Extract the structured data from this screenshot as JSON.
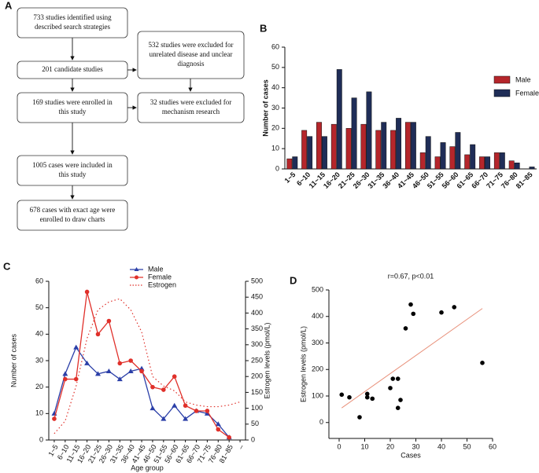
{
  "diagram": {
    "label": "A",
    "nodes": [
      {
        "lines": [
          "733 studies identified using",
          "described search strategies"
        ]
      },
      {
        "lines": [
          "201 candidate studies"
        ]
      },
      {
        "lines": [
          "532 studies were excluded for",
          "unrelated disease and unclear",
          "diagnosis"
        ]
      },
      {
        "lines": [
          "169 studies were enrolled in",
          "this study"
        ]
      },
      {
        "lines": [
          "32 studies were excluded for",
          "mechanism research"
        ]
      },
      {
        "lines": [
          "1005 cases were included in",
          "this study"
        ]
      },
      {
        "lines": [
          "678 cases with exact age were",
          "enrolled to draw charts"
        ]
      }
    ]
  },
  "chart_data": [
    {
      "type": "bar",
      "label": "B",
      "ylabel": "Number of cases",
      "categories": [
        "1~5",
        "6~10",
        "11~15",
        "16~20",
        "21~25",
        "26~30",
        "31~35",
        "36~40",
        "41~45",
        "46~50",
        "51~55",
        "56~60",
        "61~65",
        "66~70",
        "71~75",
        "76~80",
        "81~85"
      ],
      "series": [
        {
          "name": "Male",
          "color": "#b5262b",
          "values": [
            5,
            19,
            23,
            22,
            20,
            22,
            19,
            19,
            23,
            8,
            6,
            11,
            7,
            6,
            8,
            4,
            0
          ]
        },
        {
          "name": "Female",
          "color": "#1f2d57",
          "values": [
            6,
            16,
            16,
            49,
            35,
            38,
            23,
            25,
            23,
            16,
            13,
            18,
            12,
            6,
            8,
            3,
            1
          ]
        }
      ],
      "ylim": [
        0,
        60
      ],
      "yticks": [
        0,
        10,
        20,
        30,
        40,
        50,
        60
      ],
      "legend": "right"
    },
    {
      "type": "line",
      "label": "C",
      "xlabel": "Age group",
      "ylabel": "Number of cases",
      "y2label": "Estrogen levels (pmol/L)",
      "categories": [
        "1~5",
        "6~10",
        "11~15",
        "16~20",
        "21~25",
        "26~30",
        "31~35",
        "36~40",
        "41~45",
        "46~50",
        "51~55",
        "56~60",
        "61~65",
        "66~70",
        "71~75",
        "76~80",
        "81~85",
        "–"
      ],
      "series": [
        {
          "name": "Male",
          "color": "#2b3fa8",
          "marker": "triangle",
          "values": [
            10,
            25,
            35,
            29,
            25,
            26,
            23,
            26,
            27,
            12,
            8,
            13,
            8,
            11,
            10,
            6,
            1,
            null
          ]
        },
        {
          "name": "Female",
          "color": "#e0302a",
          "marker": "circle",
          "values": [
            8,
            23,
            23,
            56,
            40,
            45,
            29,
            30,
            26,
            20,
            19,
            24,
            13,
            11,
            11,
            4,
            1,
            null
          ]
        },
        {
          "name": "Estrogen",
          "color": "#e0302a",
          "dash": true,
          "axis": "y2",
          "values": [
            20,
            60,
            170,
            320,
            410,
            435,
            445,
            410,
            340,
            200,
            170,
            155,
            120,
            110,
            105,
            105,
            110,
            120
          ]
        }
      ],
      "ylim": [
        0,
        60
      ],
      "yticks": [
        0,
        10,
        20,
        30,
        40,
        50,
        60
      ],
      "y2lim": [
        0,
        500
      ],
      "y2ticks": [
        0,
        50,
        100,
        150,
        200,
        250,
        300,
        350,
        400,
        450,
        500
      ],
      "legend": "top"
    },
    {
      "type": "scatter",
      "label": "D",
      "title": "r=0.67, p<0.01",
      "xlabel": "Cases",
      "ylabel": "Estrogen levels (pmol/L)",
      "x": [
        1,
        4,
        8,
        11,
        11,
        13,
        20,
        21,
        23,
        23,
        24,
        26,
        28,
        29,
        40,
        45,
        56
      ],
      "y": [
        105,
        95,
        20,
        108,
        95,
        90,
        130,
        165,
        165,
        55,
        85,
        355,
        445,
        410,
        415,
        435,
        225
      ],
      "color": "#000000",
      "trend_line": {
        "color": "#e8907a",
        "x": [
          1,
          56
        ],
        "y": [
          55,
          430
        ]
      },
      "xlim": [
        -4,
        60
      ],
      "xticks": [
        0,
        10,
        20,
        30,
        40,
        50,
        60
      ],
      "ylim": [
        -60,
        500
      ],
      "yticks": [
        0,
        100,
        200,
        300,
        400,
        500
      ]
    }
  ]
}
